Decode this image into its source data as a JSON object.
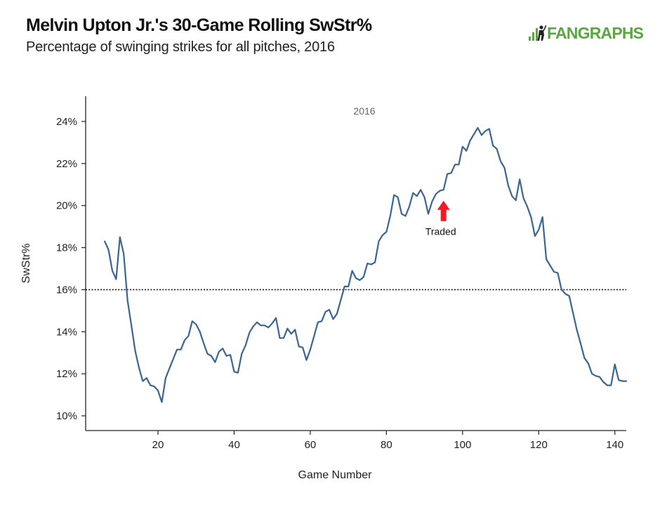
{
  "header": {
    "title": "Melvin Upton Jr.'s 30-Game Rolling SwStr%",
    "subtitle": "Percentage of swinging strikes for all pitches, 2016"
  },
  "logo": {
    "text_primary": "FAN",
    "text_secondary": "GRAPHS",
    "color": "#5aa63f"
  },
  "chart_data": {
    "type": "line",
    "xlabel": "Game Number",
    "ylabel": "SwStr%",
    "xlim": [
      1,
      143
    ],
    "ylim": [
      9.3,
      25.2
    ],
    "x_ticks": [
      20,
      40,
      60,
      80,
      100,
      120,
      140
    ],
    "y_ticks": [
      10,
      12,
      14,
      16,
      18,
      20,
      22,
      24
    ],
    "y_tick_suffix": "%",
    "grid": false,
    "series_label": "2016",
    "line_color": "#3a6591",
    "reference_line": {
      "y": 16.0,
      "style": "dotted",
      "color": "#111111"
    },
    "annotation": {
      "text": "Traded",
      "x": 95,
      "y": 20.5,
      "arrow_color": "#ee1c24"
    },
    "x": [
      6,
      7,
      8,
      9,
      10,
      11,
      12,
      13,
      14,
      15,
      16,
      17,
      18,
      19,
      20,
      21,
      22,
      23,
      24,
      25,
      26,
      27,
      28,
      29,
      30,
      31,
      32,
      33,
      34,
      35,
      36,
      37,
      38,
      39,
      40,
      41,
      42,
      43,
      44,
      45,
      46,
      47,
      48,
      49,
      50,
      51,
      52,
      53,
      54,
      55,
      56,
      57,
      58,
      59,
      60,
      61,
      62,
      63,
      64,
      65,
      66,
      67,
      68,
      69,
      70,
      71,
      72,
      73,
      74,
      75,
      76,
      77,
      78,
      79,
      80,
      81,
      82,
      83,
      84,
      85,
      86,
      87,
      88,
      89,
      90,
      91,
      92,
      93,
      94,
      95,
      96,
      97,
      98,
      99,
      100,
      101,
      102,
      103,
      104,
      105,
      106,
      107,
      108,
      109,
      110,
      111,
      112,
      113,
      114,
      115,
      116,
      117,
      118,
      119,
      120,
      121,
      122,
      123,
      124,
      125,
      126,
      127,
      128,
      129,
      130,
      131,
      132,
      133,
      134,
      135,
      136,
      137,
      138,
      139,
      140,
      141,
      142,
      143
    ],
    "values": [
      18.3,
      17.9,
      16.9,
      16.5,
      18.5,
      17.7,
      15.5,
      14.3,
      13.1,
      12.3,
      11.65,
      11.8,
      11.45,
      11.4,
      11.2,
      10.65,
      11.8,
      12.25,
      12.7,
      13.15,
      13.15,
      13.6,
      13.8,
      14.5,
      14.35,
      14.0,
      13.45,
      12.95,
      12.85,
      12.55,
      13.05,
      13.2,
      12.85,
      12.9,
      12.1,
      12.05,
      12.95,
      13.35,
      13.95,
      14.25,
      14.45,
      14.3,
      14.3,
      14.2,
      14.4,
      14.65,
      13.7,
      13.7,
      14.15,
      13.9,
      14.1,
      13.3,
      13.25,
      12.65,
      13.15,
      13.8,
      14.45,
      14.5,
      14.95,
      15.05,
      14.6,
      14.85,
      15.5,
      16.15,
      16.15,
      16.9,
      16.55,
      16.45,
      16.6,
      17.25,
      17.2,
      17.3,
      18.3,
      18.6,
      18.75,
      19.5,
      20.5,
      20.4,
      19.6,
      19.5,
      19.95,
      20.6,
      20.45,
      20.75,
      20.4,
      19.6,
      20.2,
      20.55,
      20.7,
      20.75,
      21.5,
      21.55,
      21.95,
      21.95,
      22.8,
      22.6,
      23.1,
      23.4,
      23.7,
      23.35,
      23.55,
      23.65,
      22.85,
      22.7,
      22.1,
      21.8,
      20.95,
      20.45,
      20.25,
      21.25,
      20.35,
      19.95,
      19.45,
      18.55,
      18.85,
      19.45,
      17.45,
      17.15,
      16.85,
      16.8,
      16.0,
      15.8,
      15.7,
      14.9,
      14.1,
      13.45,
      12.75,
      12.5,
      12.0,
      11.9,
      11.85,
      11.6,
      11.45,
      11.45,
      12.45,
      11.7,
      11.65,
      11.65
    ]
  }
}
